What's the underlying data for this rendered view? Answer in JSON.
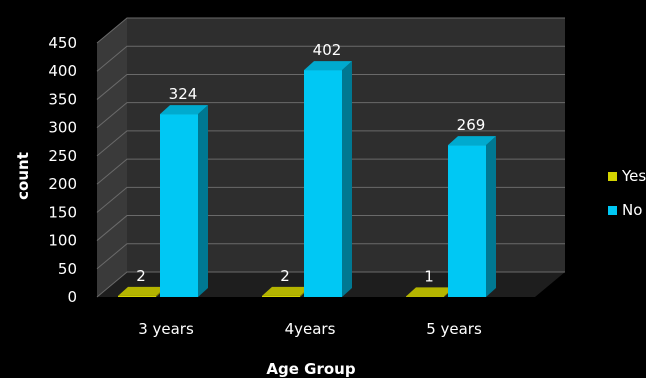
{
  "chart_data": {
    "type": "bar",
    "categories": [
      "3 years",
      "4years",
      "5 years"
    ],
    "series": [
      {
        "name": "Yes",
        "values": [
          2,
          2,
          1
        ],
        "color": "#d4d400"
      },
      {
        "name": "No",
        "values": [
          324,
          402,
          269
        ],
        "color": "#00c8f4"
      }
    ],
    "title": "",
    "xlabel": "Age Group",
    "ylabel": "count",
    "ylim": [
      0,
      450
    ],
    "yticks": [
      0,
      50,
      100,
      150,
      200,
      250,
      300,
      350,
      400,
      450
    ],
    "grid": true,
    "legend": "right",
    "style": "3d-column",
    "background": "#000000",
    "wall_color": "#2e2e2e",
    "grid_color": "#6a6a6a"
  }
}
